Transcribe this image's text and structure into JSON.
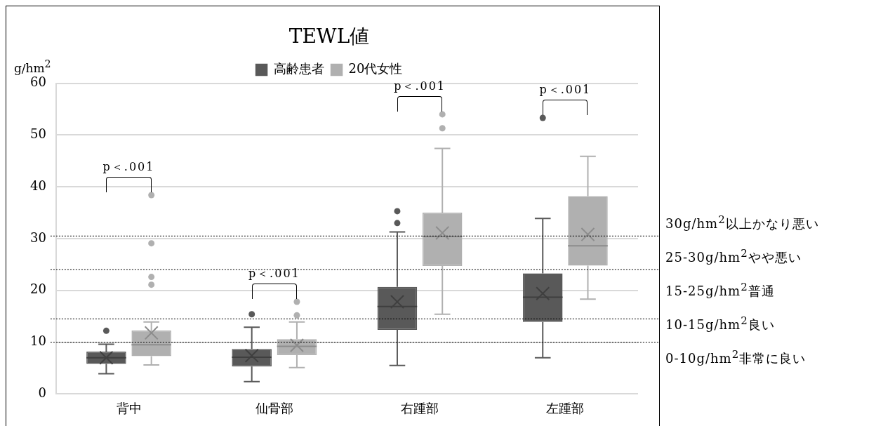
{
  "chart_data": {
    "type": "box",
    "title": "TEWL値",
    "ylabel": "g/hm$^{2}$",
    "categories": [
      "背中",
      "仙骨部",
      "右踵部",
      "左踵部"
    ],
    "ylim": [
      0,
      60
    ],
    "yticks": [
      0,
      10,
      20,
      30,
      40,
      50,
      60
    ],
    "grid": "y",
    "legend": "top",
    "series": [
      {
        "name": "高齢患者",
        "color": "#595959",
        "boxes": [
          {
            "low": 3.9,
            "q1": 5.8,
            "median": 7.0,
            "q3": 8.2,
            "high": 9.6,
            "mean": 7.0,
            "outliers": [
              12.2
            ]
          },
          {
            "low": 2.4,
            "q1": 5.3,
            "median": 7.1,
            "q3": 8.7,
            "high": 12.9,
            "mean": 7.4,
            "outliers": [
              15.4
            ]
          },
          {
            "low": 5.5,
            "q1": 12.4,
            "median": 16.9,
            "q3": 20.7,
            "high": 31.3,
            "mean": 17.8,
            "outliers": [
              33.0,
              35.3
            ]
          },
          {
            "low": 7.0,
            "q1": 13.9,
            "median": 18.7,
            "q3": 23.3,
            "high": 33.9,
            "mean": 19.4,
            "outliers": [
              53.3
            ]
          }
        ]
      },
      {
        "name": "20代女性",
        "color": "#b0b0b0",
        "boxes": [
          {
            "low": 5.6,
            "q1": 7.3,
            "median": 9.5,
            "q3": 12.3,
            "high": 13.9,
            "mean": 11.8,
            "outliers": [
              21.1,
              22.6,
              29.1,
              38.4
            ]
          },
          {
            "low": 5.1,
            "q1": 7.5,
            "median": 9.2,
            "q3": 10.6,
            "high": 13.9,
            "mean": 9.4,
            "outliers": [
              15.2,
              17.8
            ]
          },
          {
            "low": 15.4,
            "q1": 24.7,
            "median": 30.4,
            "q3": 35.0,
            "high": 47.4,
            "mean": 31.1,
            "outliers": [
              51.3,
              54.0
            ]
          },
          {
            "low": 18.3,
            "q1": 24.8,
            "median": 28.6,
            "q3": 38.2,
            "high": 45.9,
            "mean": 30.8
          }
        ]
      }
    ],
    "ref_lines": [
      {
        "axis": "y",
        "value": 10,
        "line_style": "dotted",
        "color": "#000000"
      },
      {
        "axis": "y",
        "value": 14.5,
        "line_style": "dotted",
        "color": "#000000"
      },
      {
        "axis": "y",
        "value": 24,
        "line_style": "dotted",
        "color": "#000000"
      },
      {
        "axis": "y",
        "value": 30.5,
        "line_style": "dotted",
        "color": "#000000"
      }
    ],
    "annotations": [
      "p＜.001",
      "p＜.001",
      "p＜.001",
      "p＜.001",
      "30g/hm$^{2}$以上かなり悪い",
      "25-30g/hm$^{2}$やや悪い",
      "15-25g/hm$^{2}$普通",
      "10-15g/hm$^{2}$良い",
      "0-10g/hm$^{2}$非常に良い"
    ]
  }
}
